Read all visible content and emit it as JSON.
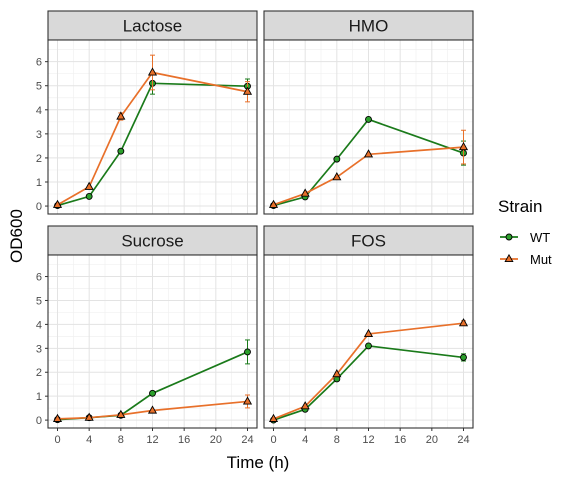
{
  "chart_data": {
    "type": "line",
    "xlabel": "Time (h)",
    "ylabel": "OD600",
    "xlim": [
      -1.2,
      25.2
    ],
    "ylim": [
      -0.33,
      6.9
    ],
    "x_ticks": [
      0,
      4,
      8,
      12,
      16,
      20,
      24
    ],
    "y_ticks": [
      0,
      1,
      2,
      3,
      4,
      5,
      6
    ],
    "grid": true,
    "legend": {
      "title": "Strain",
      "placement": "right",
      "entries": [
        {
          "label": "WT",
          "color": "#1a7a1a",
          "marker": "circle"
        },
        {
          "label": "Mut",
          "color": "#e8702a",
          "marker": "triangle"
        }
      ]
    },
    "colors": {
      "WT": "#1a7a1a",
      "Mut": "#e8702a",
      "marker_fill_WT": "#2ca02c",
      "marker_fill_Mut": "#e8702a",
      "strip_fill": "#d9d9d9"
    },
    "panels": [
      {
        "title": "Lactose",
        "series": [
          {
            "name": "WT",
            "x": [
              0,
              4,
              8,
              12,
              24
            ],
            "y": [
              0.02,
              0.4,
              2.28,
              5.1,
              4.98
            ],
            "err": [
              0,
              0,
              0,
              0.45,
              0.3
            ]
          },
          {
            "name": "Mut",
            "x": [
              0,
              4,
              8,
              12,
              24
            ],
            "y": [
              0.05,
              0.8,
              3.72,
              5.55,
              4.75
            ],
            "err": [
              0,
              0,
              0.15,
              0.72,
              0.42
            ]
          }
        ]
      },
      {
        "title": "HMO",
        "series": [
          {
            "name": "WT",
            "x": [
              0,
              4,
              8,
              12,
              24
            ],
            "y": [
              0.02,
              0.38,
              1.95,
              3.6,
              2.2
            ],
            "err": [
              0,
              0,
              0,
              0,
              0.5
            ]
          },
          {
            "name": "Mut",
            "x": [
              0,
              4,
              8,
              12,
              24
            ],
            "y": [
              0.05,
              0.52,
              1.2,
              2.15,
              2.45
            ],
            "err": [
              0,
              0,
              0,
              0,
              0.7
            ]
          }
        ]
      },
      {
        "title": "Sucrose",
        "series": [
          {
            "name": "WT",
            "x": [
              0,
              4,
              8,
              12,
              24
            ],
            "y": [
              0.02,
              0.1,
              0.2,
              1.12,
              2.85
            ],
            "err": [
              0,
              0,
              0,
              0,
              0.5
            ]
          },
          {
            "name": "Mut",
            "x": [
              0,
              4,
              8,
              12,
              24
            ],
            "y": [
              0.05,
              0.1,
              0.22,
              0.4,
              0.78
            ],
            "err": [
              0,
              0,
              0,
              0,
              0.27
            ]
          }
        ]
      },
      {
        "title": "FOS",
        "series": [
          {
            "name": "WT",
            "x": [
              0,
              4,
              8,
              12,
              24
            ],
            "y": [
              0.0,
              0.45,
              1.72,
              3.1,
              2.62
            ],
            "err": [
              0,
              0,
              0,
              0,
              0.15
            ]
          },
          {
            "name": "Mut",
            "x": [
              0,
              4,
              8,
              12,
              24
            ],
            "y": [
              0.05,
              0.58,
              1.92,
              3.6,
              4.05
            ],
            "err": [
              0,
              0,
              0,
              0,
              0.1
            ]
          }
        ]
      }
    ]
  }
}
